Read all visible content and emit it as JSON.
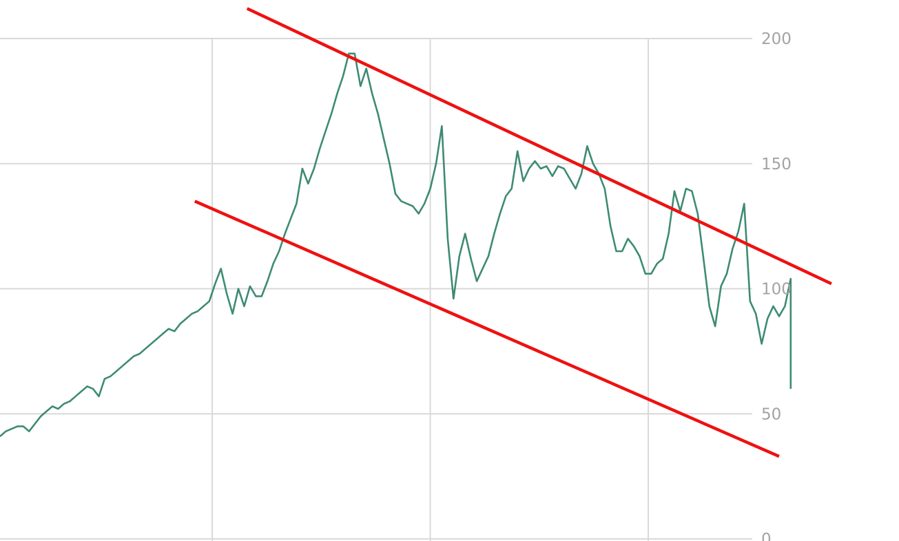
{
  "chart_data": {
    "type": "line",
    "title": "",
    "xlabel": "",
    "ylabel": "",
    "ylim": [
      0,
      200
    ],
    "y_ticks": [
      {
        "value": 0,
        "label": "0"
      },
      {
        "value": 50,
        "label": "50"
      },
      {
        "value": 100,
        "label": "100"
      },
      {
        "value": 150,
        "label": "150"
      },
      {
        "value": 200,
        "label": "200"
      }
    ],
    "x_domain": [
      0,
      262
    ],
    "x_gridlines": [
      73,
      148,
      223
    ],
    "grid": true,
    "legend": "none",
    "series": [
      {
        "color": "#3d8b74",
        "points": [
          [
            0,
            41
          ],
          [
            2,
            43
          ],
          [
            4,
            44
          ],
          [
            6,
            45
          ],
          [
            8,
            45
          ],
          [
            10,
            43
          ],
          [
            12,
            46
          ],
          [
            14,
            49
          ],
          [
            16,
            51
          ],
          [
            18,
            53
          ],
          [
            20,
            52
          ],
          [
            22,
            54
          ],
          [
            24,
            55
          ],
          [
            26,
            57
          ],
          [
            28,
            59
          ],
          [
            30,
            61
          ],
          [
            32,
            60
          ],
          [
            34,
            57
          ],
          [
            36,
            64
          ],
          [
            38,
            65
          ],
          [
            40,
            67
          ],
          [
            42,
            69
          ],
          [
            44,
            71
          ],
          [
            46,
            73
          ],
          [
            48,
            74
          ],
          [
            50,
            76
          ],
          [
            52,
            78
          ],
          [
            54,
            80
          ],
          [
            56,
            82
          ],
          [
            58,
            84
          ],
          [
            60,
            83
          ],
          [
            62,
            86
          ],
          [
            64,
            88
          ],
          [
            66,
            90
          ],
          [
            68,
            91
          ],
          [
            70,
            93
          ],
          [
            72,
            95
          ],
          [
            74,
            102
          ],
          [
            76,
            108
          ],
          [
            78,
            98
          ],
          [
            80,
            90
          ],
          [
            82,
            100
          ],
          [
            84,
            93
          ],
          [
            86,
            101
          ],
          [
            88,
            97
          ],
          [
            90,
            97
          ],
          [
            92,
            103
          ],
          [
            94,
            110
          ],
          [
            96,
            115
          ],
          [
            98,
            122
          ],
          [
            100,
            128
          ],
          [
            102,
            134
          ],
          [
            104,
            148
          ],
          [
            106,
            142
          ],
          [
            108,
            148
          ],
          [
            110,
            156
          ],
          [
            112,
            163
          ],
          [
            114,
            170
          ],
          [
            116,
            178
          ],
          [
            118,
            185
          ],
          [
            120,
            194
          ],
          [
            122,
            194
          ],
          [
            124,
            181
          ],
          [
            126,
            188
          ],
          [
            128,
            178
          ],
          [
            130,
            170
          ],
          [
            132,
            160
          ],
          [
            134,
            150
          ],
          [
            136,
            138
          ],
          [
            138,
            135
          ],
          [
            140,
            134
          ],
          [
            142,
            133
          ],
          [
            144,
            130
          ],
          [
            146,
            134
          ],
          [
            148,
            140
          ],
          [
            150,
            150
          ],
          [
            152,
            165
          ],
          [
            154,
            120
          ],
          [
            156,
            96
          ],
          [
            158,
            113
          ],
          [
            160,
            122
          ],
          [
            162,
            112
          ],
          [
            164,
            103
          ],
          [
            166,
            108
          ],
          [
            168,
            113
          ],
          [
            170,
            122
          ],
          [
            172,
            130
          ],
          [
            174,
            137
          ],
          [
            176,
            140
          ],
          [
            178,
            155
          ],
          [
            180,
            143
          ],
          [
            182,
            148
          ],
          [
            184,
            151
          ],
          [
            186,
            148
          ],
          [
            188,
            149
          ],
          [
            190,
            145
          ],
          [
            192,
            149
          ],
          [
            194,
            148
          ],
          [
            196,
            144
          ],
          [
            198,
            140
          ],
          [
            200,
            146
          ],
          [
            202,
            157
          ],
          [
            204,
            150
          ],
          [
            206,
            146
          ],
          [
            208,
            140
          ],
          [
            210,
            125
          ],
          [
            212,
            115
          ],
          [
            214,
            115
          ],
          [
            216,
            120
          ],
          [
            218,
            117
          ],
          [
            220,
            113
          ],
          [
            222,
            106
          ],
          [
            224,
            106
          ],
          [
            226,
            110
          ],
          [
            228,
            112
          ],
          [
            230,
            122
          ],
          [
            232,
            139
          ],
          [
            234,
            131
          ],
          [
            236,
            140
          ],
          [
            238,
            139
          ],
          [
            240,
            130
          ],
          [
            242,
            112
          ],
          [
            244,
            93
          ],
          [
            246,
            85
          ],
          [
            248,
            101
          ],
          [
            250,
            106
          ],
          [
            252,
            116
          ],
          [
            254,
            123
          ],
          [
            256,
            134
          ],
          [
            258,
            95
          ],
          [
            260,
            90
          ],
          [
            262,
            78
          ],
          [
            264,
            88
          ],
          [
            266,
            93
          ],
          [
            268,
            89
          ],
          [
            270,
            93
          ],
          [
            272,
            104
          ],
          [
            272,
            60
          ]
        ]
      }
    ],
    "annotations": [
      {
        "type": "trend-line",
        "color": "#ee1111",
        "from": [
          85,
          212
        ],
        "to": [
          286,
          102
        ]
      },
      {
        "type": "trend-line",
        "color": "#ee1111",
        "from": [
          67,
          135
        ],
        "to": [
          268,
          33
        ]
      }
    ]
  }
}
